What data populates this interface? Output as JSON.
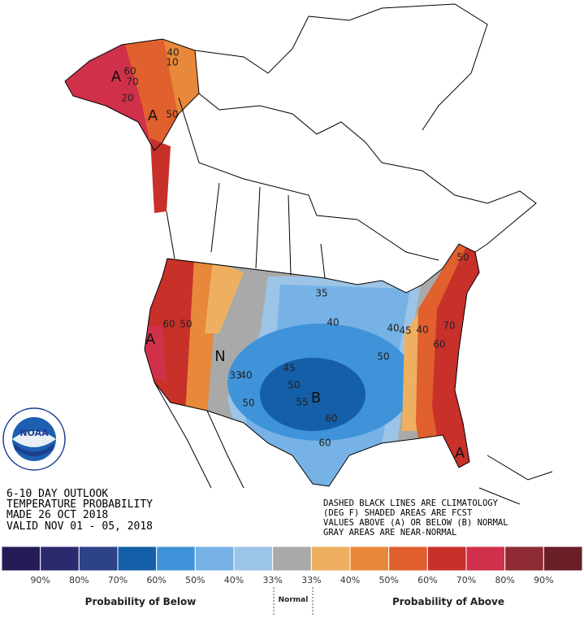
{
  "header": {
    "lines": [
      "6-10 DAY OUTLOOK",
      "TEMPERATURE PROBABILITY",
      "MADE  26 OCT 2018",
      "VALID  NOV 01 - 05, 2018"
    ]
  },
  "notes": [
    "DASHED BLACK LINES ARE CLIMATOLOGY",
    "(DEG F) SHADED AREAS ARE FCST",
    "VALUES ABOVE (A) OR BELOW (B) NORMAL",
    "GRAY AREAS ARE NEAR-NORMAL"
  ],
  "logo": {
    "text": "NOAA"
  },
  "map": {
    "labels": [
      "A",
      "60",
      "70",
      "40",
      "10",
      "20",
      "50",
      "A",
      "50",
      "35",
      "40",
      "40",
      "45",
      "60",
      "50",
      "A",
      "N",
      "33",
      "40",
      "45",
      "50",
      "55",
      "B",
      "50",
      "50",
      "60",
      "60",
      "A",
      "60",
      "70",
      "40"
    ]
  },
  "legend": {
    "colors": [
      "#231c57",
      "#2b2a6f",
      "#2d4287",
      "#155fa8",
      "#3f94d9",
      "#76b2e6",
      "#9cc4e7",
      "#a9a9a9",
      "#eeb060",
      "#e8883a",
      "#e0602e",
      "#c8302a",
      "#d0304a",
      "#8e2a34",
      "#6a1f26"
    ],
    "labels": [
      "90%",
      "80%",
      "70%",
      "60%",
      "50%",
      "40%",
      "33%",
      "33%",
      "40%",
      "50%",
      "60%",
      "70%",
      "80%",
      "90%"
    ],
    "below": "Probability of Below",
    "normal": "Normal",
    "above": "Probability of Above"
  }
}
